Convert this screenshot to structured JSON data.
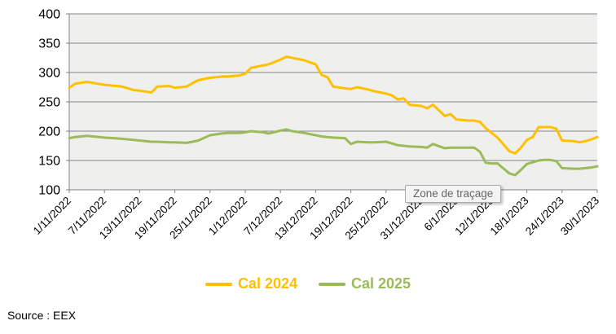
{
  "chart_data": {
    "type": "line",
    "title": "",
    "x_axis": {
      "total_days": 90,
      "tick_day_offsets": [
        0,
        6,
        12,
        18,
        24,
        30,
        36,
        42,
        48,
        54,
        60,
        66,
        72,
        78,
        84,
        90
      ],
      "tick_labels": [
        "1/11/2022",
        "7/11/2022",
        "13/11/2022",
        "19/11/2022",
        "25/11/2022",
        "1/12/2022",
        "7/12/2022",
        "13/12/2022",
        "19/12/2022",
        "25/12/2022",
        "31/12/2022",
        "6/1/2023",
        "12/1/2023",
        "18/1/2023",
        "24/1/2023",
        "30/1/2023"
      ]
    },
    "y_axis": {
      "min": 100,
      "max": 400,
      "step": 50,
      "ticks": [
        400,
        350,
        300,
        250,
        200,
        150,
        100
      ]
    },
    "grid": true,
    "legend_position": "bottom",
    "plot_bg": "#efefed",
    "axis_color": "#808080",
    "gridline_color": "#868686",
    "series": [
      {
        "name": "Cal 2024",
        "color": "#FFC000",
        "points": [
          [
            0,
            274
          ],
          [
            1,
            281
          ],
          [
            3,
            284
          ],
          [
            6,
            279
          ],
          [
            9,
            276
          ],
          [
            11,
            270
          ],
          [
            12,
            269
          ],
          [
            14,
            266
          ],
          [
            15,
            276
          ],
          [
            17,
            277
          ],
          [
            18,
            274
          ],
          [
            20,
            276
          ],
          [
            21,
            282
          ],
          [
            22,
            287
          ],
          [
            24,
            291
          ],
          [
            26,
            293
          ],
          [
            27,
            293
          ],
          [
            29,
            295
          ],
          [
            30,
            298
          ],
          [
            31,
            308
          ],
          [
            33,
            312
          ],
          [
            34,
            314
          ],
          [
            36,
            322
          ],
          [
            37,
            327
          ],
          [
            38,
            325
          ],
          [
            40,
            321
          ],
          [
            42,
            314
          ],
          [
            43,
            296
          ],
          [
            44,
            292
          ],
          [
            45,
            276
          ],
          [
            47,
            273
          ],
          [
            48,
            272
          ],
          [
            49,
            275
          ],
          [
            51,
            271
          ],
          [
            52,
            268
          ],
          [
            54,
            264
          ],
          [
            55,
            261
          ],
          [
            56,
            254
          ],
          [
            57,
            256
          ],
          [
            58,
            245
          ],
          [
            60,
            243
          ],
          [
            61,
            239
          ],
          [
            62,
            245
          ],
          [
            64,
            226
          ],
          [
            65,
            229
          ],
          [
            66,
            220
          ],
          [
            68,
            218
          ],
          [
            69,
            218
          ],
          [
            70,
            216
          ],
          [
            71,
            205
          ],
          [
            72,
            197
          ],
          [
            73,
            189
          ],
          [
            75,
            166
          ],
          [
            76,
            162
          ],
          [
            77,
            172
          ],
          [
            78,
            185
          ],
          [
            79,
            190
          ],
          [
            80,
            207
          ],
          [
            81,
            207
          ],
          [
            82,
            207
          ],
          [
            83,
            204
          ],
          [
            84,
            184
          ],
          [
            86,
            183
          ],
          [
            87,
            181
          ],
          [
            88,
            183
          ],
          [
            89,
            186
          ],
          [
            90,
            190
          ]
        ]
      },
      {
        "name": "Cal 2025",
        "color": "#9BBB59",
        "points": [
          [
            0,
            188
          ],
          [
            1,
            190
          ],
          [
            3,
            192
          ],
          [
            6,
            189
          ],
          [
            9,
            187
          ],
          [
            11,
            185
          ],
          [
            12,
            184
          ],
          [
            14,
            182
          ],
          [
            15,
            182
          ],
          [
            17,
            181
          ],
          [
            18,
            181
          ],
          [
            20,
            180
          ],
          [
            21,
            182
          ],
          [
            22,
            184
          ],
          [
            24,
            193
          ],
          [
            26,
            196
          ],
          [
            27,
            197
          ],
          [
            29,
            197
          ],
          [
            30,
            198
          ],
          [
            31,
            200
          ],
          [
            33,
            198
          ],
          [
            34,
            196
          ],
          [
            36,
            201
          ],
          [
            37,
            203
          ],
          [
            38,
            200
          ],
          [
            40,
            197
          ],
          [
            42,
            193
          ],
          [
            43,
            191
          ],
          [
            44,
            190
          ],
          [
            45,
            189
          ],
          [
            47,
            188
          ],
          [
            48,
            178
          ],
          [
            49,
            182
          ],
          [
            51,
            181
          ],
          [
            52,
            181
          ],
          [
            54,
            182
          ],
          [
            55,
            179
          ],
          [
            56,
            176
          ],
          [
            57,
            175
          ],
          [
            58,
            174
          ],
          [
            60,
            173
          ],
          [
            61,
            172
          ],
          [
            62,
            178
          ],
          [
            64,
            171
          ],
          [
            65,
            172
          ],
          [
            66,
            172
          ],
          [
            68,
            172
          ],
          [
            69,
            172
          ],
          [
            70,
            165
          ],
          [
            71,
            146
          ],
          [
            72,
            145
          ],
          [
            73,
            145
          ],
          [
            75,
            128
          ],
          [
            76,
            125
          ],
          [
            77,
            134
          ],
          [
            78,
            144
          ],
          [
            79,
            147
          ],
          [
            80,
            150
          ],
          [
            81,
            151
          ],
          [
            82,
            151
          ],
          [
            83,
            149
          ],
          [
            84,
            137
          ],
          [
            86,
            136
          ],
          [
            87,
            136
          ],
          [
            88,
            137
          ],
          [
            89,
            138
          ],
          [
            90,
            140
          ]
        ]
      }
    ]
  },
  "tooltip": {
    "text": "Zone de traçage"
  },
  "legend": {
    "items": [
      {
        "label": "Cal 2024",
        "color": "#FFC000"
      },
      {
        "label": "Cal 2025",
        "color": "#9BBB59"
      }
    ]
  },
  "source": {
    "text": "Source : EEX"
  }
}
